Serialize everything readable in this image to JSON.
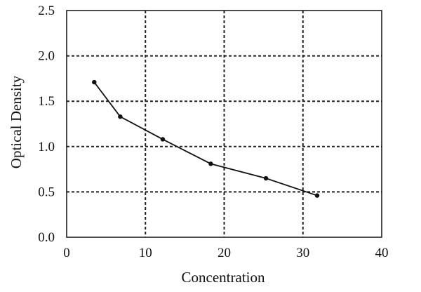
{
  "chart_data": {
    "type": "line",
    "title": "",
    "xlabel": "Concentration",
    "ylabel": "Optical Density",
    "xlim": [
      0,
      40
    ],
    "ylim": [
      0.0,
      2.5
    ],
    "x_ticks": [
      "0",
      "10",
      "20",
      "30",
      "40"
    ],
    "y_ticks": [
      "0.0",
      "0.5",
      "1.0",
      "1.5",
      "2.0",
      "2.5"
    ],
    "grid": "dashed, both axes",
    "series": [
      {
        "x": [
          3.5,
          6.8,
          12.2,
          18.3,
          25.3,
          31.8
        ],
        "y": [
          1.71,
          1.33,
          1.08,
          0.81,
          0.65,
          0.46
        ]
      }
    ],
    "colors": {
      "line": "#111111",
      "grid": "#222222",
      "background": "#ffffff"
    }
  }
}
